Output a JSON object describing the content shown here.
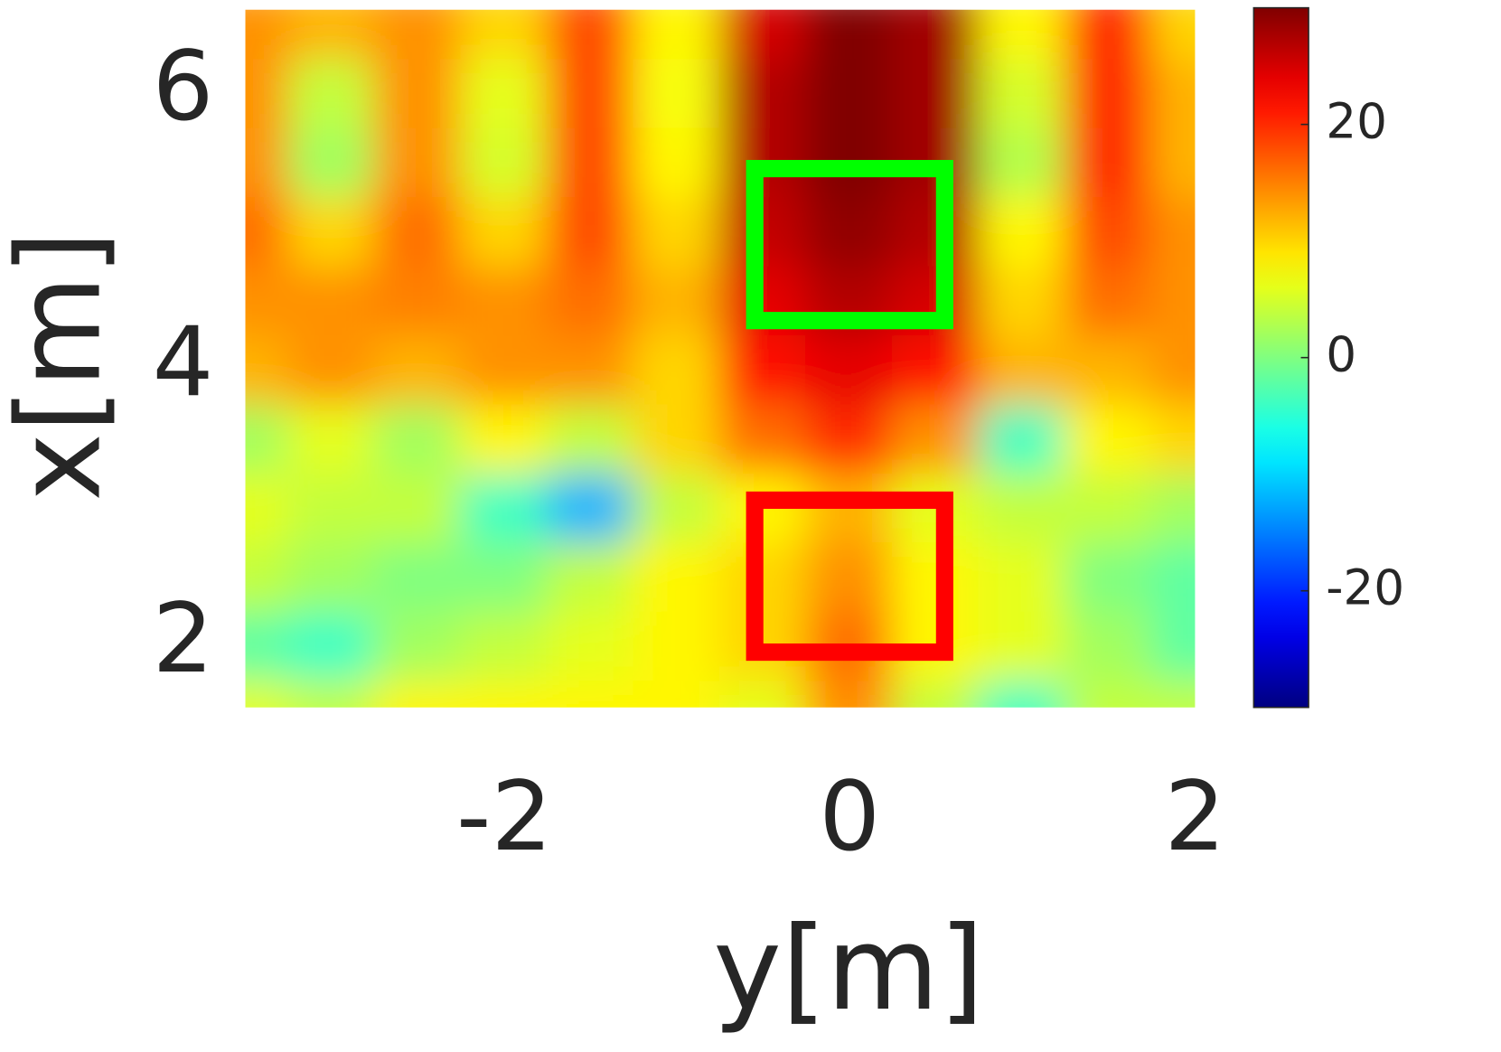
{
  "chart_data": {
    "type": "heatmap",
    "xlabel": "y[m]",
    "ylabel": "x[m]",
    "x": [
      -3.5,
      -3,
      -2.5,
      -2,
      -1.5,
      -1,
      -0.5,
      0,
      0.5,
      1,
      1.5,
      2
    ],
    "y": [
      1.5,
      2,
      2.5,
      3,
      3.5,
      4,
      4.5,
      5,
      5.5,
      6,
      6.5
    ],
    "values": [
      [
        6,
        4,
        8,
        8,
        8,
        8,
        6,
        14,
        4,
        -4,
        4,
        4
      ],
      [
        -2,
        -4,
        2,
        4,
        6,
        8,
        10,
        16,
        8,
        6,
        2,
        -2
      ],
      [
        4,
        2,
        0,
        0,
        4,
        8,
        10,
        14,
        8,
        6,
        0,
        -2
      ],
      [
        6,
        4,
        4,
        -4,
        -12,
        4,
        8,
        12,
        6,
        4,
        4,
        2
      ],
      [
        2,
        6,
        2,
        8,
        4,
        10,
        16,
        20,
        14,
        -4,
        8,
        10
      ],
      [
        12,
        14,
        12,
        14,
        14,
        10,
        22,
        24,
        22,
        12,
        12,
        14
      ],
      [
        14,
        14,
        15,
        14,
        16,
        12,
        24,
        27,
        25,
        10,
        16,
        14
      ],
      [
        16,
        10,
        16,
        10,
        18,
        10,
        26,
        29,
        27,
        8,
        18,
        14
      ],
      [
        14,
        2,
        14,
        5,
        18,
        8,
        27,
        30,
        28,
        3,
        20,
        12
      ],
      [
        14,
        4,
        14,
        6,
        18,
        7,
        27,
        30,
        28,
        5,
        20,
        12
      ],
      [
        14,
        12,
        14,
        10,
        18,
        8,
        25,
        30,
        28,
        8,
        20,
        10
      ]
    ],
    "xlim": [
      -3.5,
      2
    ],
    "ylim": [
      1.55,
      6.6
    ],
    "xticks": [
      -2,
      0,
      2
    ],
    "yticks": [
      2,
      4,
      6
    ],
    "colorbar": {
      "clim": [
        -30,
        30
      ],
      "ticks": [
        -20,
        0,
        20
      ]
    },
    "regions": [
      {
        "color": "#00ff00",
        "x": [
          -0.55,
          0.55
        ],
        "y": [
          4.35,
          5.45
        ]
      },
      {
        "color": "#ff0000",
        "x": [
          -0.55,
          0.55
        ],
        "y": [
          1.95,
          3.05
        ]
      }
    ]
  }
}
